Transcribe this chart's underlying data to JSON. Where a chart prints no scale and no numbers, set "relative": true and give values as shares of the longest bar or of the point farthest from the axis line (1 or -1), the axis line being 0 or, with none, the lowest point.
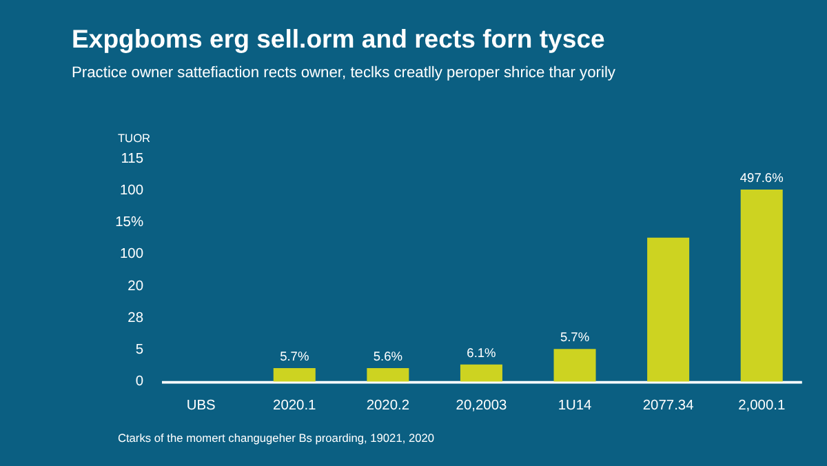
{
  "chart_data": {
    "type": "bar",
    "title": "Expgboms erg sell.orm and rects forn tysce",
    "subtitle": "Practice owner sattefiaction rects owner, teclks creatlly peroper shrice thar yorily",
    "ylabel": "TUOR",
    "categories": [
      "UBS",
      "2020.1",
      "2020.2",
      "20,2003",
      "1U14",
      "2077.34",
      "2,000.1"
    ],
    "values": [
      null,
      0.07,
      0.07,
      0.089,
      0.17,
      0.75,
      1
    ],
    "relative": true,
    "color": "#cdd321",
    "annotations": [
      "5.7%",
      "5.6%",
      "6.1%",
      "5.7%",
      "497.6%",
      "0",
      "5",
      "28",
      "20",
      "100",
      "15%",
      "100",
      "115",
      "Ctarks of the momert changugeher Bs proarding, 19021, 2020"
    ]
  }
}
